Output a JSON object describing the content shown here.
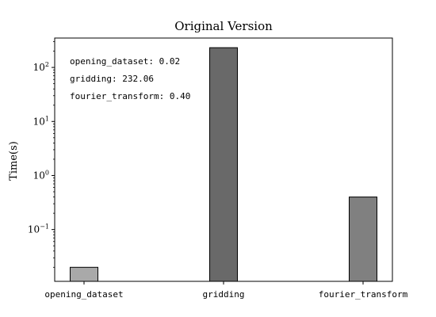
{
  "chart_data": {
    "type": "bar",
    "title": "Original Version",
    "ylabel": "Time(s)",
    "xlabel": "",
    "yscale": "log",
    "ylim": [
      0.011,
      350
    ],
    "grid": false,
    "categories": [
      "opening_dataset",
      "gridding",
      "fourier_transform"
    ],
    "values": [
      0.02,
      232.06,
      0.4
    ],
    "bar_colors": [
      "#a9a9a9",
      "#696969",
      "#808080"
    ],
    "edge_color": "#000000",
    "y_ticks": [
      {
        "value": 0.1,
        "base": "10",
        "exp": "−1"
      },
      {
        "value": 1,
        "base": "10",
        "exp": "0"
      },
      {
        "value": 10,
        "base": "10",
        "exp": "1"
      },
      {
        "value": 100,
        "base": "10",
        "exp": "2"
      }
    ],
    "annotations": [
      "opening_dataset: 0.02",
      "gridding: 232.06",
      "fourier_transform: 0.40"
    ]
  }
}
